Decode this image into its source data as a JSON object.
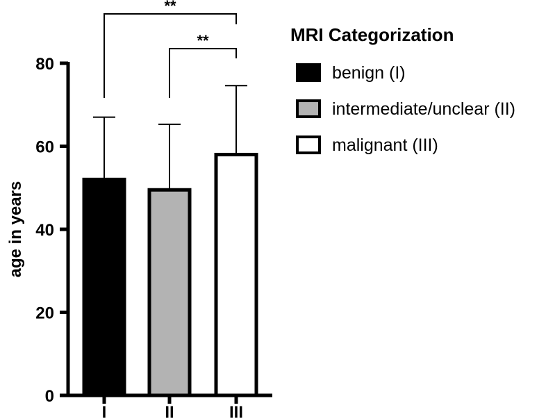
{
  "chart_data": {
    "type": "bar",
    "categories": [
      "I",
      "II",
      "III"
    ],
    "values": [
      52,
      49.5,
      58
    ],
    "error_upper": [
      67,
      65.3,
      74.6
    ],
    "colors": [
      "#000000",
      "#b3b3b3",
      "#ffffff"
    ],
    "title": "",
    "xlabel": "",
    "ylabel": "age in years",
    "ylim": [
      0,
      80
    ],
    "yticks": [
      0,
      20,
      40,
      60,
      80
    ],
    "grid": false,
    "legend": {
      "title": "MRI Categorization",
      "placement": "right",
      "entries": [
        "benign (I)",
        "intermediate/unclear (II)",
        "malignant (III)"
      ]
    },
    "significance": [
      {
        "from": "I",
        "to": "III",
        "label": "**"
      },
      {
        "from": "II",
        "to": "III",
        "label": "**"
      }
    ]
  }
}
